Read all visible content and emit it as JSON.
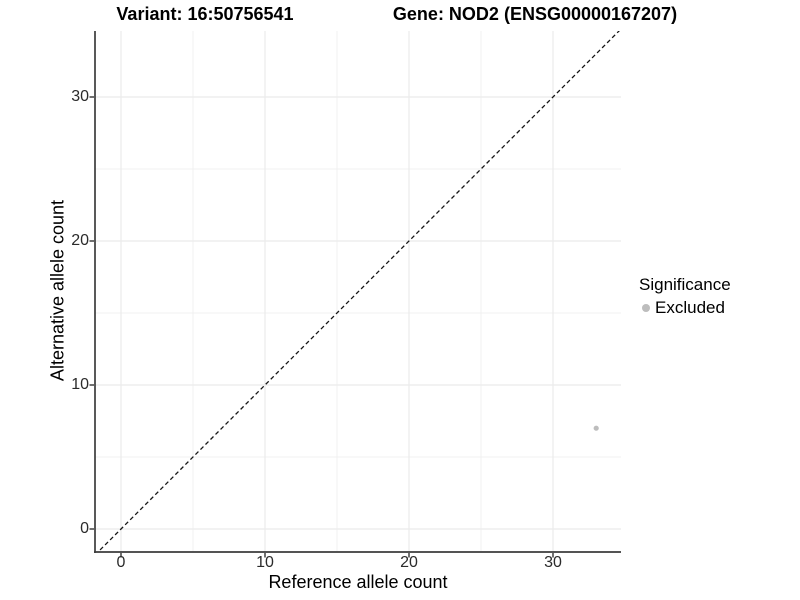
{
  "header": {
    "variant_title": "Variant: 16:50756541",
    "gene_title": "Gene: NOD2 (ENSG00000167207)"
  },
  "legend": {
    "title": "Significance",
    "items": [
      {
        "label": "Excluded",
        "color": "#bdbdbd"
      }
    ]
  },
  "chart_data": {
    "type": "scatter",
    "title": "Variant: 16:50756541 — Gene: NOD2 (ENSG00000167207)",
    "xlabel": "Reference allele count",
    "ylabel": "Alternative allele count",
    "xlim": [
      -1.8,
      34.7
    ],
    "ylim": [
      -1.6,
      34.6
    ],
    "x_ticks": [
      0,
      10,
      20,
      30
    ],
    "y_ticks": [
      0,
      10,
      20,
      30
    ],
    "grid": true,
    "legend_position": "right",
    "series": [
      {
        "name": "Excluded",
        "color": "#bdbdbd",
        "points": [
          {
            "x": 33,
            "y": 7
          }
        ]
      }
    ],
    "reference_line": {
      "type": "identity",
      "equation": "y = x",
      "style": "dashed",
      "color": "#161616"
    }
  },
  "colors": {
    "background": "#ffffff",
    "grid_major": "#ebebeb",
    "grid_minor": "#f1f1f1",
    "axis_line": "#3c3c3c",
    "tick_mark": "#333333",
    "tick_text": "#2b2b2b",
    "title_text": "#000000",
    "point": "#bdbdbd"
  }
}
